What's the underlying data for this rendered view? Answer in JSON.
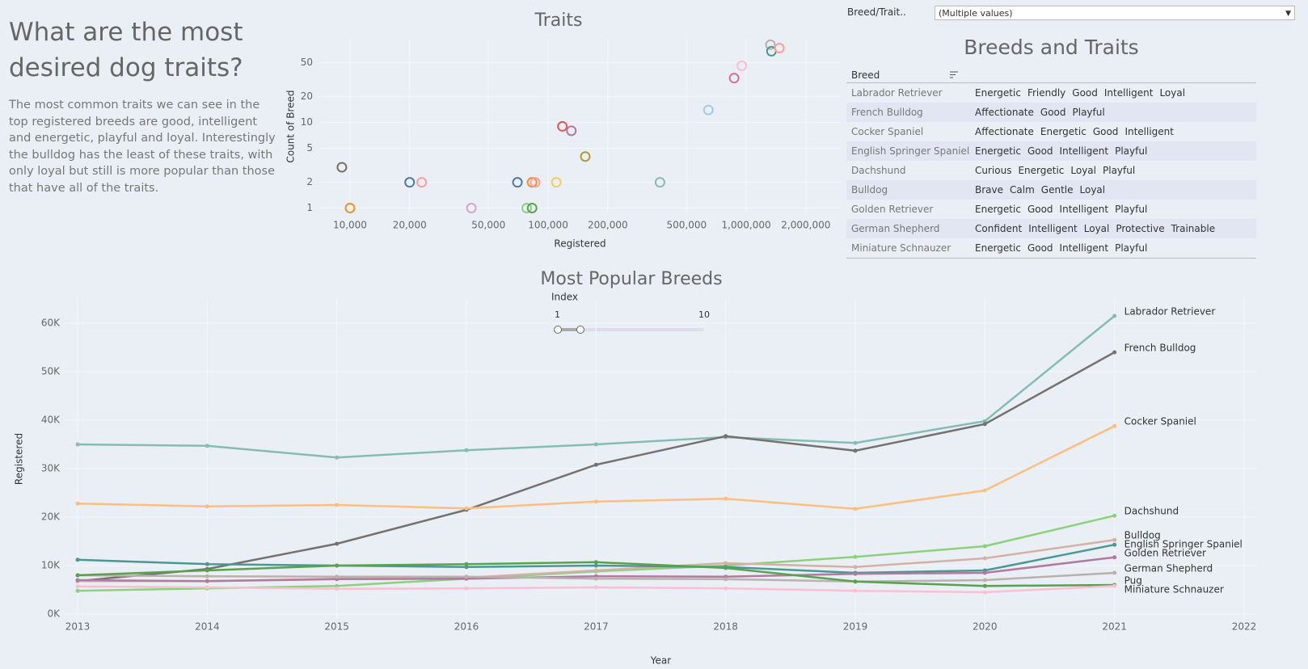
{
  "header": {
    "title": "What are the most desired dog traits?",
    "description": "The most common traits we can see in the top registered breeds are good, intelligent and energetic, playful and loyal. Interestingly the bulldog has the least of these traits, with only loyal but still is more popular than those that have all of the traits."
  },
  "filter": {
    "label": "Breed/Trait..",
    "value": "(Multiple values)"
  },
  "table": {
    "title": "Breeds and Traits",
    "column": "Breed",
    "rows": [
      {
        "breed": "Labrador Retriever",
        "traits": [
          "Energetic",
          "Friendly",
          "Good",
          "Intelligent",
          "Loyal"
        ]
      },
      {
        "breed": "French Bulldog",
        "traits": [
          "Affectionate",
          "Good",
          "Playful"
        ]
      },
      {
        "breed": "Cocker Spaniel",
        "traits": [
          "Affectionate",
          "Energetic",
          "Good",
          "Intelligent"
        ]
      },
      {
        "breed": "English Springer Spaniel",
        "traits": [
          "Energetic",
          "Good",
          "Intelligent",
          "Playful"
        ]
      },
      {
        "breed": "Dachshund",
        "traits": [
          "Curious",
          "Energetic",
          "Loyal",
          "Playful"
        ]
      },
      {
        "breed": "Bulldog",
        "traits": [
          "Brave",
          "Calm",
          "Gentle",
          "Loyal"
        ]
      },
      {
        "breed": "Golden Retriever",
        "traits": [
          "Energetic",
          "Good",
          "Intelligent",
          "Playful"
        ]
      },
      {
        "breed": "German Shepherd",
        "traits": [
          "Confident",
          "Intelligent",
          "Loyal",
          "Protective",
          "Trainable"
        ]
      },
      {
        "breed": "Miniature Schnauzer",
        "traits": [
          "Energetic",
          "Good",
          "Intelligent",
          "Playful"
        ]
      }
    ]
  },
  "index_filter": {
    "label": "Index",
    "min": 1,
    "max": 10
  },
  "chart_data": [
    {
      "type": "scatter",
      "title": "Traits",
      "x_label": "Registered",
      "y_label": "Count of Breed",
      "xscale": "log",
      "yscale": "log",
      "grid": true,
      "x": [
        9100,
        10000,
        20000,
        23000,
        41000,
        70000,
        78000,
        83000,
        83000,
        86000,
        110000,
        118000,
        131000,
        154000,
        367000,
        644000,
        869000,
        950000,
        1325000,
        1340000,
        1470000
      ],
      "values": [
        3,
        1,
        2,
        2,
        1,
        2,
        1,
        1,
        2,
        2,
        2,
        9,
        8,
        4,
        2,
        14,
        33,
        46,
        81,
        68,
        74
      ],
      "colors": [
        "#79706e",
        "#f28e2b",
        "#4e79a7",
        "#ff9d9a",
        "#d4a6c8",
        "#4e79a7",
        "#8cd17d",
        "#59a14f",
        "#f28e2b",
        "#ff9d9a",
        "#f1ce63",
        "#e15759",
        "#b07aa1",
        "#b6992d",
        "#86bcb6",
        "#a0cbe8",
        "#d37295",
        "#fabfd2",
        "#bab0ac",
        "#499894",
        "#ff9d9a"
      ],
      "xlim": [
        7000,
        3000000
      ],
      "ylim": [
        0.85,
        95
      ],
      "xticks": [
        {
          "value": 10000,
          "label": "10,000"
        },
        {
          "value": 20000,
          "label": "20,000"
        },
        {
          "value": 50000,
          "label": "50,000"
        },
        {
          "value": 100000,
          "label": "100,000"
        },
        {
          "value": 200000,
          "label": "200,000"
        },
        {
          "value": 500000,
          "label": "500,000"
        },
        {
          "value": 1000000,
          "label": "1,000,000"
        },
        {
          "value": 2000000,
          "label": "2,000,000"
        }
      ],
      "yticks": [
        1,
        2,
        5,
        10,
        20,
        50
      ]
    },
    {
      "type": "line",
      "title": "Most Popular Breeds",
      "x_label": "Year",
      "y_label": "Registered",
      "grid": true,
      "x": [
        2013,
        2014,
        2015,
        2016,
        2017,
        2018,
        2019,
        2020,
        2021
      ],
      "series": [
        {
          "name": "Labrador Retriever",
          "color": "#86bcb6",
          "values": [
            35000,
            34700,
            32300,
            33800,
            35000,
            36500,
            35300,
            39800,
            61500
          ]
        },
        {
          "name": "French Bulldog",
          "color": "#767171",
          "values": [
            6800,
            9300,
            14500,
            21500,
            30800,
            36700,
            33700,
            39200,
            54000
          ]
        },
        {
          "name": "Cocker Spaniel",
          "color": "#ffbe7d",
          "values": [
            22800,
            22200,
            22500,
            21800,
            23200,
            23800,
            21700,
            25500,
            38800
          ]
        },
        {
          "name": "Dachshund",
          "color": "#8cd17d",
          "values": [
            4800,
            5300,
            5800,
            7300,
            8800,
            10000,
            11800,
            14000,
            20300
          ]
        },
        {
          "name": "Bulldog",
          "color": "#d4b0a6",
          "values": [
            6800,
            6800,
            7300,
            7500,
            9000,
            10500,
            9700,
            11500,
            15300
          ]
        },
        {
          "name": "English Springer Spaniel",
          "color": "#499894",
          "values": [
            11200,
            10300,
            10000,
            9700,
            10000,
            9700,
            8500,
            9000,
            14300
          ]
        },
        {
          "name": "Golden Retriever",
          "color": "#b07aa1",
          "values": [
            7000,
            6800,
            7200,
            7300,
            7800,
            7700,
            8300,
            8500,
            11700
          ]
        },
        {
          "name": "German Shepherd",
          "color": "#bab0ac",
          "values": [
            8000,
            7800,
            7700,
            7700,
            7300,
            7200,
            6700,
            7000,
            8500
          ]
        },
        {
          "name": "Pug",
          "color": "#59a14f",
          "values": [
            8000,
            9000,
            10000,
            10300,
            10700,
            9500,
            6700,
            5800,
            6000
          ]
        },
        {
          "name": "Miniature Schnauzer",
          "color": "#fabfd2",
          "values": [
            5700,
            5500,
            5200,
            5300,
            5500,
            5300,
            4800,
            4500,
            5800
          ]
        }
      ],
      "xlim": [
        2012.9,
        2022.1
      ],
      "ylim": [
        -1000,
        65000
      ],
      "xticks": [
        2013,
        2014,
        2015,
        2016,
        2017,
        2018,
        2019,
        2020,
        2021,
        2022
      ],
      "yticks": [
        {
          "value": 0,
          "label": "0K"
        },
        {
          "value": 10000,
          "label": "10K"
        },
        {
          "value": 20000,
          "label": "20K"
        },
        {
          "value": 30000,
          "label": "30K"
        },
        {
          "value": 40000,
          "label": "40K"
        },
        {
          "value": 50000,
          "label": "50K"
        },
        {
          "value": 60000,
          "label": "60K"
        }
      ]
    }
  ]
}
